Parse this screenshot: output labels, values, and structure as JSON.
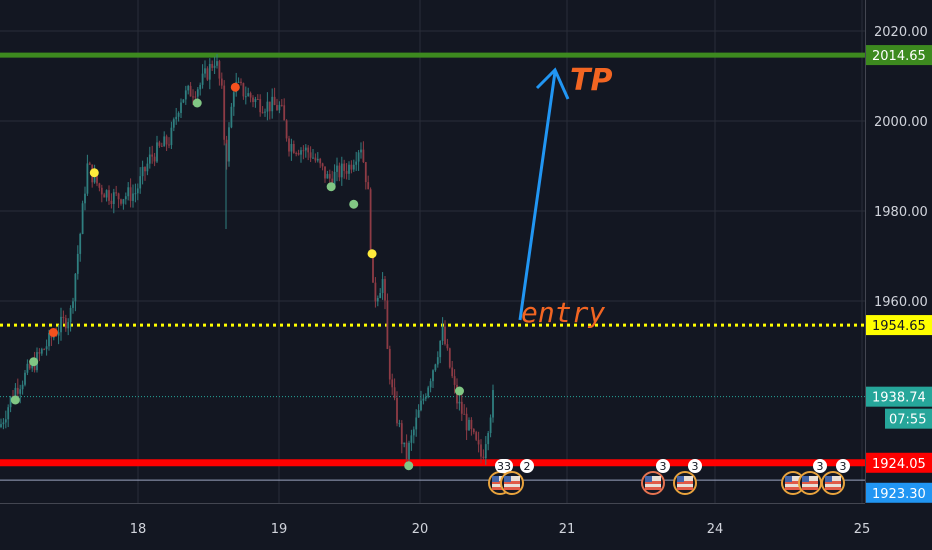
{
  "chart_data": {
    "type": "candlestick",
    "symbol_theme": "dark",
    "y_axis": {
      "ticks": [
        2020,
        2000,
        1980,
        1960
      ],
      "tick_labels": [
        "2020.00",
        "2000.00",
        "1980.00",
        "1960.00"
      ],
      "range": [
        1914,
        2024
      ]
    },
    "x_axis": {
      "tick_labels": [
        "18",
        "19",
        "20",
        "21",
        "24",
        "25"
      ]
    },
    "price_path": [
      {
        "t": 17.02,
        "p": 1932
      },
      {
        "t": 17.12,
        "p": 1940
      },
      {
        "t": 17.26,
        "p": 1946
      },
      {
        "t": 17.41,
        "p": 1953
      },
      {
        "t": 17.52,
        "p": 1957
      },
      {
        "t": 17.59,
        "p": 1975
      },
      {
        "t": 17.64,
        "p": 1990
      },
      {
        "t": 17.73,
        "p": 1985
      },
      {
        "t": 17.84,
        "p": 1983
      },
      {
        "t": 17.98,
        "p": 1984
      },
      {
        "t": 18.09,
        "p": 1992
      },
      {
        "t": 18.23,
        "p": 1996
      },
      {
        "t": 18.3,
        "p": 2005
      },
      {
        "t": 18.44,
        "p": 2008
      },
      {
        "t": 18.55,
        "p": 2014
      },
      {
        "t": 18.6,
        "p": 2005
      },
      {
        "t": 18.62,
        "p": 1990
      },
      {
        "t": 18.68,
        "p": 2008
      },
      {
        "t": 18.86,
        "p": 2004
      },
      {
        "t": 19.01,
        "p": 2003
      },
      {
        "t": 19.07,
        "p": 1995
      },
      {
        "t": 19.22,
        "p": 1993
      },
      {
        "t": 19.35,
        "p": 1987
      },
      {
        "t": 19.5,
        "p": 1990
      },
      {
        "t": 19.58,
        "p": 1995
      },
      {
        "t": 19.63,
        "p": 1985
      },
      {
        "t": 19.67,
        "p": 1960
      },
      {
        "t": 19.74,
        "p": 1965
      },
      {
        "t": 19.77,
        "p": 1948
      },
      {
        "t": 19.81,
        "p": 1938
      },
      {
        "t": 19.9,
        "p": 1925
      },
      {
        "t": 19.99,
        "p": 1935
      },
      {
        "t": 20.09,
        "p": 1945
      },
      {
        "t": 20.16,
        "p": 1953
      },
      {
        "t": 20.26,
        "p": 1938
      },
      {
        "t": 20.37,
        "p": 1930
      },
      {
        "t": 20.44,
        "p": 1925
      },
      {
        "t": 20.52,
        "p": 1939
      }
    ],
    "signal_dots": [
      {
        "t": 17.13,
        "p": 1938,
        "color": "#81c784"
      },
      {
        "t": 17.26,
        "p": 1946.5,
        "color": "#81c784"
      },
      {
        "t": 17.4,
        "p": 1953,
        "color": "#f4511e"
      },
      {
        "t": 17.69,
        "p": 1988.5,
        "color": "#ffeb3b"
      },
      {
        "t": 18.42,
        "p": 2004,
        "color": "#81c784"
      },
      {
        "t": 18.69,
        "p": 2007.5,
        "color": "#f4511e"
      },
      {
        "t": 19.37,
        "p": 1985.4,
        "color": "#81c784"
      },
      {
        "t": 19.53,
        "p": 1981.5,
        "color": "#81c784"
      },
      {
        "t": 19.66,
        "p": 1970.5,
        "color": "#ffeb3b"
      },
      {
        "t": 19.92,
        "p": 1923.4,
        "color": "#81c784"
      },
      {
        "t": 20.28,
        "p": 1940,
        "color": "#81c784"
      }
    ],
    "horizontal_lines": [
      {
        "price": 2014.65,
        "label": "2014.65",
        "color": "#3d8a1f",
        "style": "solid"
      },
      {
        "price": 1954.65,
        "label": "1954.65",
        "color": "#ffff00",
        "style": "dotted"
      },
      {
        "price": 1938.74,
        "label": "1938.74",
        "color": "#26a69a",
        "style": "dotted"
      },
      {
        "price": 1924.05,
        "label": "1924.05",
        "color": "#ff0000",
        "style": "solid"
      },
      {
        "price": 1923.3,
        "label": "1923.30",
        "color": "#2196f3",
        "style": "thin"
      }
    ],
    "countdown": "07:55",
    "annotations": {
      "tp": "TP",
      "entry": "entry",
      "color": "#f26522",
      "arrow_color": "#2196f3"
    },
    "events": [
      {
        "label": "33",
        "x_day": "20"
      },
      {
        "label": "2",
        "x_day": "20"
      },
      {
        "label": "3",
        "x_day": "21"
      },
      {
        "label": "3",
        "x_day": "21"
      },
      {
        "label": "3",
        "x_day": "24"
      },
      {
        "label": "3",
        "x_day": "24"
      }
    ]
  }
}
